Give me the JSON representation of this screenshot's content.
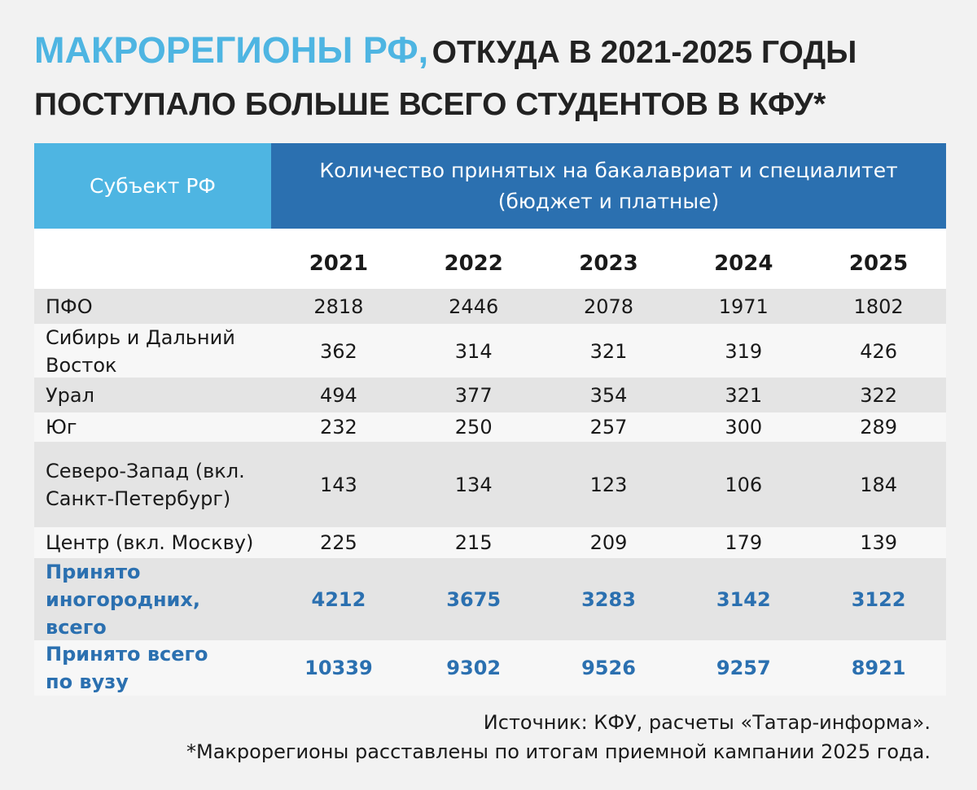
{
  "header": {
    "title_highlight": "МАКРОРЕГИОНЫ РФ,",
    "title_rest": "ОТКУДА В 2021-2025 ГОДЫ ПОСТУПАЛО БОЛЬШЕ ВСЕГО СТУДЕНТОВ В КФУ*"
  },
  "table": {
    "subject_header": "Субъект РФ",
    "count_header": "Количество принятых на бакалавриат и специалитет (бюджет и платные)",
    "years": [
      "2021",
      "2022",
      "2023",
      "2024",
      "2025"
    ],
    "rows": [
      {
        "label": "ПФО",
        "values": [
          2818,
          2446,
          2078,
          1971,
          1802
        ]
      },
      {
        "label": "Сибирь и Дальний Восток",
        "values": [
          362,
          314,
          321,
          319,
          426
        ]
      },
      {
        "label": "Урал",
        "values": [
          494,
          377,
          354,
          321,
          322
        ]
      },
      {
        "label": "Юг",
        "values": [
          232,
          250,
          257,
          300,
          289
        ]
      },
      {
        "label": "Северо-Запад (вкл. Санкт-Петербург)",
        "values": [
          143,
          134,
          123,
          106,
          184
        ]
      },
      {
        "label": "Центр (вкл. Москву)",
        "values": [
          225,
          215,
          209,
          179,
          139
        ]
      },
      {
        "label": "Принято иногородних, всего",
        "values": [
          4212,
          3675,
          3283,
          3142,
          3122
        ]
      },
      {
        "label": "Принято всего по вузу",
        "values": [
          10339,
          9302,
          9526,
          9257,
          8921
        ]
      }
    ]
  },
  "footer": {
    "source": "Источник: КФУ, расчеты «Татар-информа».",
    "note": "*Макрорегионы расставлены по итогам приемной кампании 2025 года."
  }
}
